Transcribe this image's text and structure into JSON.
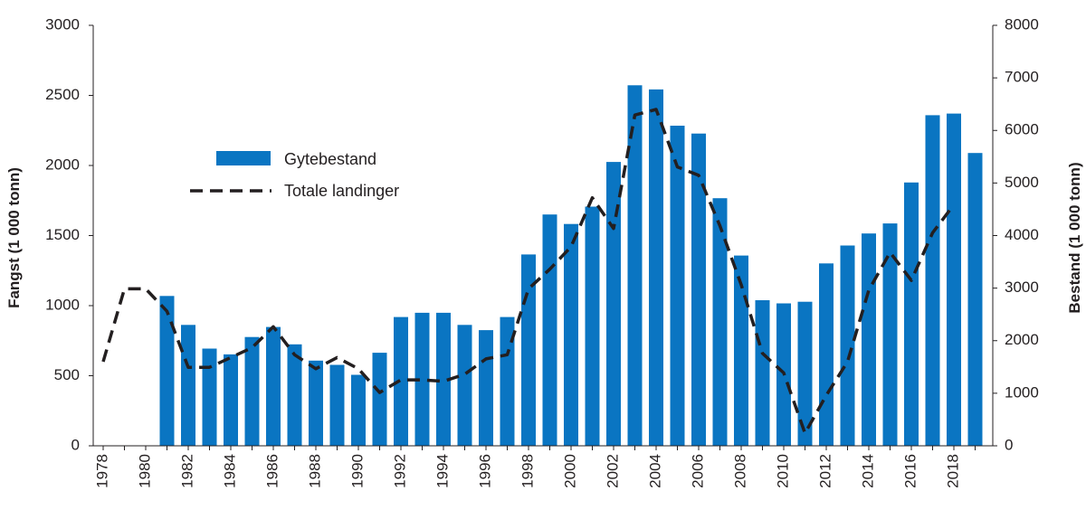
{
  "chart_data": {
    "type": "bar+line",
    "years": [
      1978,
      1979,
      1980,
      1981,
      1982,
      1983,
      1984,
      1985,
      1986,
      1987,
      1988,
      1989,
      1990,
      1991,
      1992,
      1993,
      1994,
      1995,
      1996,
      1997,
      1998,
      1999,
      2000,
      2001,
      2002,
      2003,
      2004,
      2005,
      2006,
      2007,
      2008,
      2009,
      2010,
      2011,
      2012,
      2013,
      2014,
      2015,
      2016,
      2017,
      2018,
      2019
    ],
    "x_tick_labels": [
      "1978",
      "1980",
      "1982",
      "1984",
      "1986",
      "1988",
      "1990",
      "1992",
      "1994",
      "1996",
      "1998",
      "2000",
      "2002",
      "2004",
      "2006",
      "2008",
      "2010",
      "2012",
      "2014",
      "2016",
      "2018"
    ],
    "y_left": {
      "label": "Fangst (1 000 tonn)",
      "ticks": [
        "0",
        "500",
        "1000",
        "1500",
        "2000",
        "2500",
        "3000"
      ],
      "range": [
        0,
        3000
      ]
    },
    "y_right": {
      "label": "Bestand (1 000 tonn)",
      "ticks": [
        "0",
        "1000",
        "2000",
        "3000",
        "4000",
        "5000",
        "6000",
        "7000",
        "8000"
      ],
      "range": [
        0,
        8000
      ]
    },
    "series": [
      {
        "name": "Gytebestand",
        "type": "bar",
        "axis": "right",
        "color": "#0a75c2",
        "values": [
          null,
          null,
          null,
          2850,
          2300,
          1850,
          1740,
          2070,
          2260,
          1930,
          1620,
          1540,
          1350,
          1770,
          2450,
          2530,
          2530,
          2300,
          2200,
          2450,
          3640,
          4400,
          4220,
          4550,
          5400,
          6860,
          6780,
          6090,
          5940,
          4710,
          3620,
          2770,
          2710,
          2740,
          3470,
          3810,
          4040,
          4230,
          5010,
          6290,
          6320,
          5570
        ]
      },
      {
        "name": "Totale landinger",
        "type": "line",
        "axis": "left",
        "color": "#231f20",
        "values": [
          600,
          1120,
          1120,
          960,
          560,
          560,
          630,
          700,
          850,
          650,
          550,
          630,
          550,
          380,
          470,
          470,
          460,
          510,
          620,
          650,
          1120,
          1260,
          1420,
          1770,
          1550,
          2360,
          2400,
          1990,
          1930,
          1570,
          1150,
          660,
          520,
          90,
          360,
          600,
          1110,
          1380,
          1180,
          1520,
          1720,
          null
        ]
      }
    ],
    "legend": {
      "position": "upper-left"
    }
  }
}
